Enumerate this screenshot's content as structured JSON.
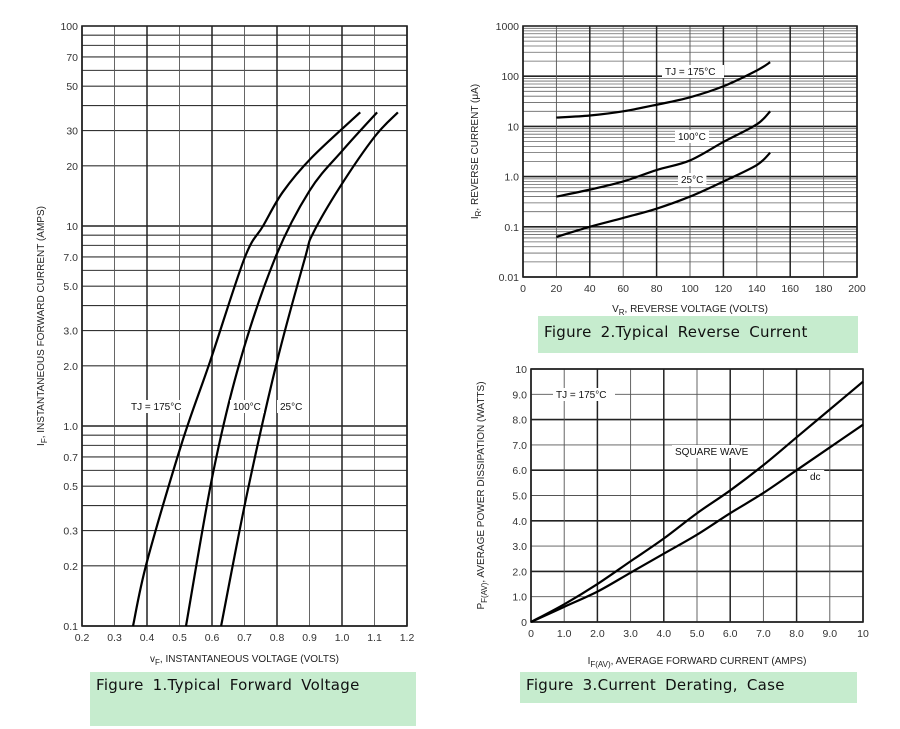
{
  "chart_data": [
    {
      "type": "line",
      "title": "Figure 1.Typical  Forward  Voltage",
      "xlabel_sym": "v",
      "xlabel_sub": "F",
      "xlabel_text": ", INSTANTANEOUS VOLTAGE (VOLTS)",
      "ylabel_sym": "I",
      "ylabel_sub": "F",
      "ylabel_text": ", INSTANTANEOUS FORWARD CURRENT (AMPS)",
      "xlim": [
        0.2,
        1.2
      ],
      "ylim": [
        0.1,
        100
      ],
      "yscale": "log",
      "grid": true,
      "xticks": [
        "0.2",
        "0.3",
        "0.4",
        "0.5",
        "0.6",
        "0.7",
        "0.8",
        "0.9",
        "1.0",
        "1.1",
        "1.2"
      ],
      "yticks": [
        "100",
        "70",
        "50",
        "30",
        "20",
        "10",
        "7.0",
        "5.0",
        "3.0",
        "2.0",
        "1.0",
        "0.7",
        "0.5",
        "0.3",
        "0.2",
        "0.1"
      ],
      "series": [
        {
          "name": "TJ = 175°C",
          "x": [
            0.357,
            0.4,
            0.507,
            0.594,
            0.7,
            0.757,
            0.818,
            0.907,
            1.056
          ],
          "y": [
            0.1,
            0.21,
            0.82,
            2.1,
            6.9,
            10,
            14.8,
            22,
            37
          ]
        },
        {
          "name": "100°C",
          "x": [
            0.52,
            0.603,
            0.686,
            0.794,
            0.9,
            1.003,
            1.108
          ],
          "y": [
            0.1,
            0.58,
            2.1,
            6.9,
            15,
            24,
            37
          ]
        },
        {
          "name": "25°C",
          "x": [
            0.628,
            0.708,
            0.8,
            0.886,
            0.911,
            0.994,
            1.1,
            1.172
          ],
          "y": [
            0.1,
            0.46,
            2.1,
            6.9,
            9.2,
            15.7,
            27.9,
            37
          ]
        }
      ],
      "annotations": [
        "TJ = 175°C",
        "100°C",
        "25°C"
      ]
    },
    {
      "type": "line",
      "title": "Figure 2.Typical  Reverse  Current",
      "xlabel_sym": "V",
      "xlabel_sub": "R",
      "xlabel_text": ", REVERSE VOLTAGE (VOLTS)",
      "ylabel_sym": "I",
      "ylabel_sub": "R",
      "ylabel_text": ", REVERSE CURRENT (μA)",
      "xlim": [
        0,
        200
      ],
      "ylim": [
        0.01,
        1000
      ],
      "yscale": "log",
      "grid": true,
      "xticks": [
        "0",
        "20",
        "40",
        "60",
        "80",
        "100",
        "120",
        "140",
        "160",
        "180",
        "200"
      ],
      "yticks": [
        "1000",
        "100",
        "10",
        "1.0",
        "0.1",
        "0.01"
      ],
      "series": [
        {
          "name": "TJ = 175°C",
          "x": [
            20,
            40,
            60,
            80,
            100,
            120,
            140,
            148
          ],
          "y": [
            15,
            16.5,
            20,
            27,
            38,
            63,
            130,
            190
          ]
        },
        {
          "name": "100°C",
          "x": [
            20,
            40,
            60,
            80,
            100,
            120,
            140,
            148
          ],
          "y": [
            0.4,
            0.55,
            0.8,
            1.35,
            2.1,
            4.9,
            11,
            20
          ]
        },
        {
          "name": "25°C",
          "x": [
            20,
            40,
            60,
            80,
            100,
            120,
            140,
            148
          ],
          "y": [
            0.063,
            0.1,
            0.15,
            0.23,
            0.4,
            0.8,
            1.7,
            3.0
          ]
        }
      ],
      "annotations": [
        "TJ = 175°C",
        "100°C",
        "25°C"
      ]
    },
    {
      "type": "line",
      "title": "Figure 3.Current  Derating,  Case",
      "xlabel_sym": "I",
      "xlabel_sub": "F(AV)",
      "xlabel_text": ", AVERAGE FORWARD CURRENT (AMPS)",
      "ylabel_sym": "P",
      "ylabel_sub": "F(AV)",
      "ylabel_text": ", AVERAGE POWER DISSIPATION (WATTS)",
      "xlim": [
        0,
        10
      ],
      "ylim": [
        0,
        10
      ],
      "yscale": "linear",
      "grid": true,
      "xticks": [
        "0",
        "1.0",
        "2.0",
        "3.0",
        "4.0",
        "5.0",
        "6.0",
        "7.0",
        "8.0",
        "9.0",
        "10"
      ],
      "yticks": [
        "10",
        "9.0",
        "8.0",
        "7.0",
        "6.0",
        "5.0",
        "4.0",
        "3.0",
        "2.0",
        "1.0",
        "0"
      ],
      "series": [
        {
          "name": "SQUARE WAVE",
          "x": [
            0,
            1,
            2,
            3,
            4,
            5,
            6,
            7,
            8,
            9,
            10
          ],
          "y": [
            0,
            0.7,
            1.5,
            2.4,
            3.3,
            4.3,
            5.2,
            6.2,
            7.3,
            8.4,
            9.5
          ]
        },
        {
          "name": "dc",
          "x": [
            0,
            1,
            2,
            3,
            4,
            5,
            6,
            7,
            8,
            9,
            10
          ],
          "y": [
            0,
            0.6,
            1.2,
            1.95,
            2.7,
            3.45,
            4.3,
            5.1,
            6.0,
            6.9,
            7.8
          ]
        }
      ],
      "annotations": [
        "TJ = 175°C",
        "SQUARE WAVE",
        "dc"
      ]
    }
  ]
}
